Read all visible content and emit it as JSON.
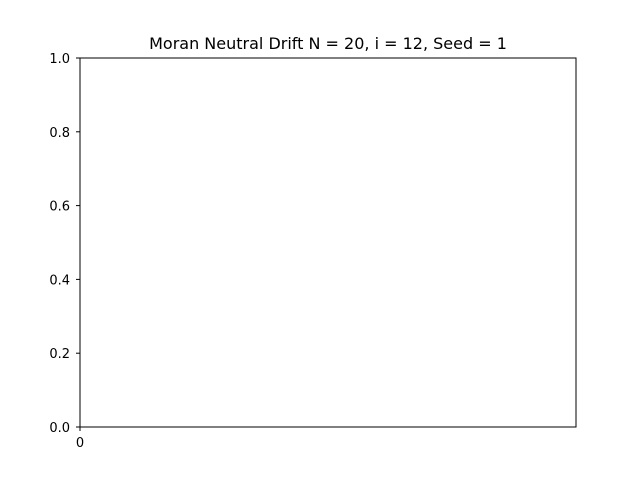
{
  "chart_data": {
    "type": "line",
    "title": "Moran Neutral Drift N = 20, i = 12, Seed = 1",
    "xlabel": "",
    "ylabel": "",
    "x_ticks": [
      "0"
    ],
    "y_ticks": [
      "0.0",
      "0.2",
      "0.4",
      "0.6",
      "0.8",
      "1.0"
    ],
    "xlim": [
      0,
      1
    ],
    "ylim": [
      0,
      1
    ],
    "grid": false,
    "series": []
  }
}
